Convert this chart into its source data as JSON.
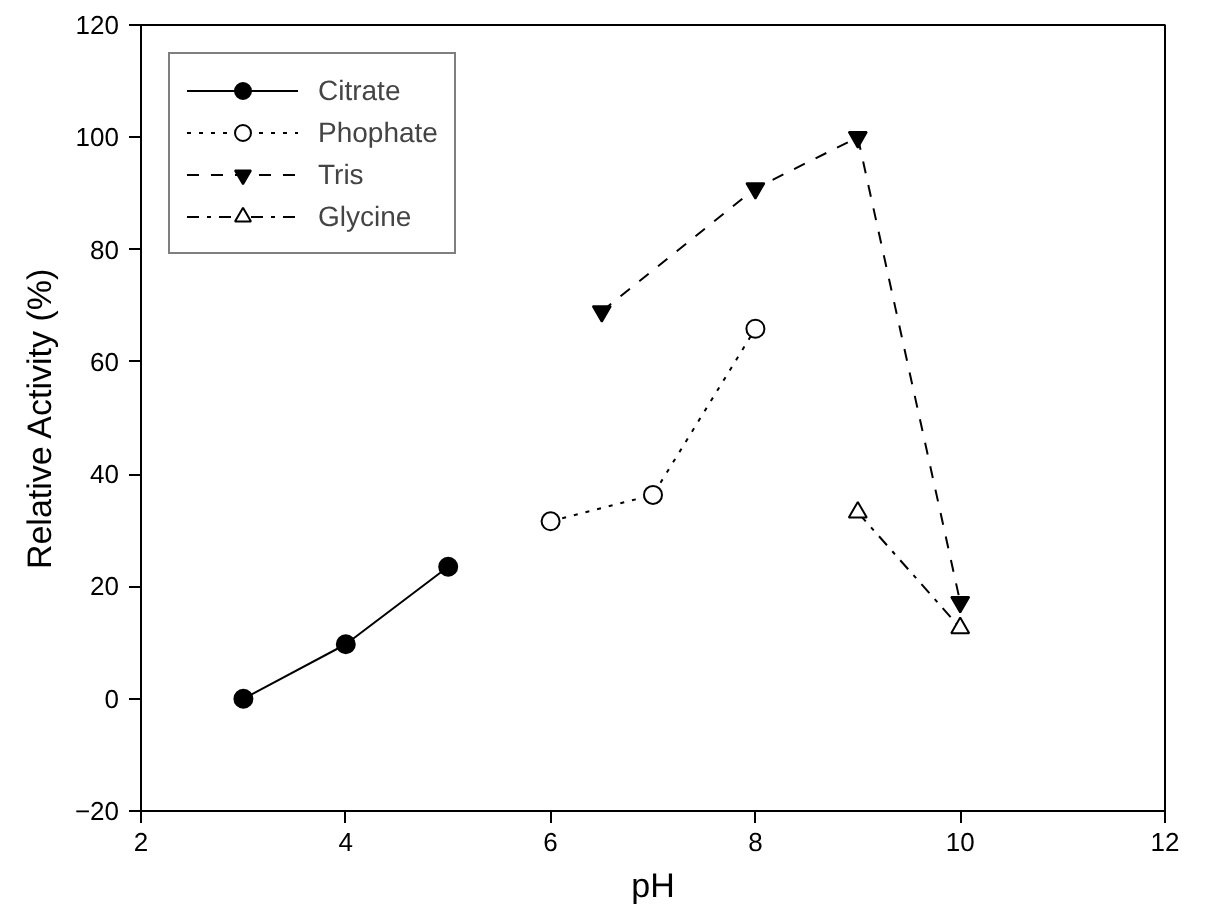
{
  "chart_data": {
    "type": "line",
    "xlabel": "pH",
    "ylabel": "Relative Activity (%)",
    "xlim": [
      2,
      12
    ],
    "xticks": [
      2,
      4,
      6,
      8,
      10,
      12
    ],
    "ylim": [
      -20,
      120
    ],
    "yticks": [
      -20,
      0,
      20,
      40,
      60,
      80,
      100,
      120
    ],
    "grid": false,
    "legend": "top left",
    "series": [
      {
        "name": "Citrate",
        "color": "#000000",
        "marker": "circle",
        "line_style": "solid",
        "x": [
          3,
          4,
          5
        ],
        "values": [
          0,
          9.7,
          23.5
        ]
      },
      {
        "name": "Phophate",
        "color": "#000000",
        "marker": "circle",
        "line_style": "dotted",
        "x": [
          6,
          7,
          8
        ],
        "values": [
          31.6,
          36.3,
          65.9
        ]
      },
      {
        "name": "Tris",
        "color": "#000000",
        "marker": "triangle",
        "line_style": "dashed",
        "x": [
          6.5,
          8,
          9,
          10
        ],
        "values": [
          69,
          90.9,
          100,
          17.2
        ]
      },
      {
        "name": "Glycine",
        "color": "#000000",
        "marker": "triangle",
        "line_style": "dashed",
        "x": [
          9,
          10
        ],
        "values": [
          33.2,
          12.6
        ]
      }
    ]
  }
}
